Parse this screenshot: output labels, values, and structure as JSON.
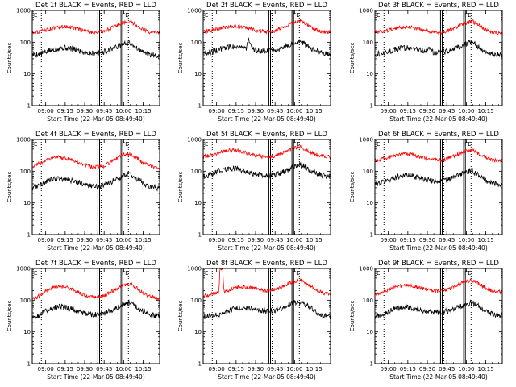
{
  "figure": {
    "x_axis_label": "Start Time (22-Mar-05 08:49:40)",
    "y_axis_label": "Counts/sec",
    "x_tick_labels": [
      "09:00",
      "09:15",
      "09:30",
      "09:45",
      "10:00",
      "10:15"
    ],
    "y_tick_labels": [
      "1",
      "10",
      "100",
      "1000"
    ],
    "flag_labels": [
      "E",
      "F",
      "F",
      "E"
    ],
    "colors": {
      "events": "#000000",
      "lld": "#ff0000",
      "background": "#ffffff",
      "axes": "#000000"
    }
  },
  "chart_data": [
    {
      "type": "line",
      "title": "Det 1f BLACK = Events, RED = LLD",
      "x_unit": "minutes after 08:49:40",
      "xlim": [
        0,
        98
      ],
      "ylim": [
        1,
        1000
      ],
      "y_scale": "log",
      "dotted_lines_x": [
        7,
        53,
        74
      ],
      "solid_line_pairs_x": [
        [
          50.5,
          51.8
        ],
        [
          68.3,
          69.6
        ]
      ],
      "series": [
        {
          "name": "Events",
          "color": "#000000",
          "x": [
            0,
            5,
            10,
            15,
            20,
            25,
            30,
            35,
            40,
            45,
            50,
            55,
            60,
            65,
            70,
            75,
            80,
            85,
            90,
            98
          ],
          "y": [
            40,
            42,
            48,
            57,
            64,
            67,
            63,
            55,
            48,
            45,
            46,
            50,
            60,
            72,
            88,
            95,
            68,
            48,
            40,
            38
          ]
        },
        {
          "name": "LLD",
          "color": "#ff0000",
          "x": [
            0,
            5,
            10,
            15,
            20,
            25,
            30,
            35,
            40,
            45,
            50,
            55,
            60,
            65,
            70,
            75,
            80,
            85,
            90,
            98
          ],
          "y": [
            205,
            215,
            240,
            270,
            300,
            310,
            290,
            260,
            230,
            210,
            205,
            220,
            270,
            340,
            420,
            460,
            350,
            260,
            210,
            195
          ]
        }
      ]
    },
    {
      "type": "line",
      "title": "Det 2f BLACK = Events, RED = LLD",
      "x_unit": "minutes after 08:49:40",
      "xlim": [
        0,
        98
      ],
      "ylim": [
        1,
        1000
      ],
      "y_scale": "log",
      "dotted_lines_x": [
        7,
        53,
        74
      ],
      "solid_line_pairs_x": [
        [
          50.5,
          51.8
        ],
        [
          68.3,
          69.6
        ]
      ],
      "series": [
        {
          "name": "Events",
          "color": "#000000",
          "x": [
            0,
            5,
            10,
            15,
            20,
            25,
            30,
            33,
            35,
            37,
            40,
            45,
            50,
            55,
            60,
            65,
            70,
            75,
            80,
            85,
            90,
            98
          ],
          "y": [
            45,
            48,
            55,
            65,
            72,
            75,
            70,
            62,
            120,
            64,
            56,
            52,
            54,
            58,
            66,
            80,
            98,
            105,
            80,
            58,
            46,
            42
          ]
        },
        {
          "name": "LLD",
          "color": "#ff0000",
          "x": [
            0,
            5,
            10,
            15,
            20,
            25,
            30,
            35,
            40,
            45,
            50,
            55,
            60,
            65,
            70,
            75,
            80,
            85,
            90,
            98
          ],
          "y": [
            215,
            230,
            255,
            285,
            310,
            320,
            300,
            270,
            240,
            220,
            215,
            230,
            280,
            350,
            430,
            460,
            360,
            270,
            220,
            205
          ]
        }
      ]
    },
    {
      "type": "line",
      "title": "Det 3f BLACK = Events, RED = LLD",
      "x_unit": "minutes after 08:49:40",
      "xlim": [
        0,
        98
      ],
      "ylim": [
        1,
        1000
      ],
      "y_scale": "log",
      "dotted_lines_x": [
        7,
        53,
        74
      ],
      "solid_line_pairs_x": [
        [
          50.5,
          51.8
        ],
        [
          68.3,
          69.6
        ]
      ],
      "series": [
        {
          "name": "Events",
          "color": "#000000",
          "x": [
            0,
            5,
            10,
            15,
            20,
            25,
            30,
            35,
            40,
            42,
            44,
            47,
            50,
            55,
            60,
            65,
            70,
            75,
            80,
            85,
            90,
            98
          ],
          "y": [
            42,
            45,
            50,
            58,
            64,
            68,
            64,
            56,
            50,
            72,
            49,
            47,
            48,
            52,
            62,
            74,
            90,
            96,
            70,
            50,
            42,
            40
          ]
        },
        {
          "name": "LLD",
          "color": "#ff0000",
          "x": [
            0,
            5,
            10,
            15,
            20,
            25,
            30,
            35,
            40,
            45,
            50,
            55,
            60,
            65,
            70,
            75,
            80,
            85,
            90,
            98
          ],
          "y": [
            200,
            210,
            235,
            265,
            295,
            305,
            285,
            255,
            225,
            205,
            200,
            215,
            265,
            335,
            410,
            450,
            340,
            255,
            205,
            190
          ]
        }
      ]
    },
    {
      "type": "line",
      "title": "Det 4f BLACK = Events, RED = LLD",
      "x_unit": "minutes after 08:49:40",
      "xlim": [
        0,
        98
      ],
      "ylim": [
        1,
        1000
      ],
      "y_scale": "log",
      "dotted_lines_x": [
        7,
        53,
        74
      ],
      "solid_line_pairs_x": [
        [
          50.5,
          51.8
        ],
        [
          68.3,
          69.6
        ]
      ],
      "series": [
        {
          "name": "Events",
          "color": "#000000",
          "x": [
            0,
            5,
            10,
            15,
            20,
            25,
            30,
            35,
            40,
            45,
            50,
            55,
            60,
            65,
            70,
            75,
            80,
            85,
            90,
            98
          ],
          "y": [
            30,
            36,
            45,
            55,
            60,
            58,
            52,
            45,
            38,
            34,
            33,
            36,
            45,
            58,
            72,
            80,
            60,
            42,
            33,
            28
          ]
        },
        {
          "name": "LLD",
          "color": "#ff0000",
          "x": [
            0,
            5,
            10,
            15,
            20,
            25,
            30,
            35,
            40,
            45,
            50,
            55,
            60,
            65,
            70,
            75,
            80,
            85,
            90,
            98
          ],
          "y": [
            140,
            170,
            210,
            250,
            270,
            260,
            230,
            190,
            160,
            140,
            135,
            145,
            190,
            260,
            330,
            360,
            270,
            190,
            150,
            125
          ]
        }
      ]
    },
    {
      "type": "line",
      "title": "Det 5f BLACK = Events, RED = LLD",
      "x_unit": "minutes after 08:49:40",
      "xlim": [
        0,
        98
      ],
      "ylim": [
        1,
        1000
      ],
      "y_scale": "log",
      "dotted_lines_x": [
        7,
        53,
        74
      ],
      "solid_line_pairs_x": [
        [
          50.5,
          51.8
        ],
        [
          68.3,
          69.6
        ]
      ],
      "series": [
        {
          "name": "Events",
          "color": "#000000",
          "x": [
            0,
            5,
            10,
            15,
            20,
            25,
            30,
            35,
            40,
            45,
            50,
            55,
            60,
            65,
            70,
            75,
            80,
            85,
            90,
            98
          ],
          "y": [
            65,
            75,
            95,
            115,
            125,
            120,
            108,
            95,
            82,
            75,
            72,
            76,
            90,
            110,
            140,
            160,
            125,
            95,
            78,
            70
          ]
        },
        {
          "name": "LLD",
          "color": "#ff0000",
          "x": [
            0,
            5,
            10,
            15,
            20,
            25,
            30,
            35,
            40,
            45,
            50,
            55,
            60,
            65,
            70,
            75,
            80,
            85,
            90,
            98
          ],
          "y": [
            290,
            310,
            360,
            420,
            460,
            450,
            410,
            360,
            320,
            290,
            280,
            295,
            350,
            440,
            540,
            590,
            450,
            360,
            310,
            280
          ]
        }
      ]
    },
    {
      "type": "line",
      "title": "Det 6f BLACK = Events, RED = LLD",
      "x_unit": "minutes after 08:49:40",
      "xlim": [
        0,
        98
      ],
      "ylim": [
        1,
        1000
      ],
      "y_scale": "log",
      "dotted_lines_x": [
        7,
        53,
        74
      ],
      "solid_line_pairs_x": [
        [
          50.5,
          51.8
        ],
        [
          68.3,
          69.6
        ]
      ],
      "series": [
        {
          "name": "Events",
          "color": "#000000",
          "x": [
            0,
            5,
            10,
            15,
            20,
            25,
            30,
            35,
            40,
            45,
            50,
            55,
            60,
            65,
            70,
            75,
            80,
            85,
            90,
            98
          ],
          "y": [
            40,
            44,
            52,
            64,
            72,
            75,
            70,
            62,
            55,
            50,
            48,
            52,
            62,
            78,
            95,
            102,
            75,
            52,
            42,
            38
          ]
        },
        {
          "name": "LLD",
          "color": "#ff0000",
          "x": [
            0,
            5,
            10,
            15,
            20,
            25,
            30,
            35,
            40,
            45,
            50,
            55,
            60,
            65,
            70,
            75,
            80,
            85,
            90,
            98
          ],
          "y": [
            220,
            235,
            265,
            305,
            340,
            350,
            320,
            285,
            250,
            230,
            225,
            240,
            290,
            360,
            430,
            460,
            350,
            270,
            225,
            210
          ]
        }
      ]
    },
    {
      "type": "line",
      "title": "Det 7f BLACK = Events, RED = LLD",
      "x_unit": "minutes after 08:49:40",
      "xlim": [
        0,
        98
      ],
      "ylim": [
        1,
        1000
      ],
      "y_scale": "log",
      "dotted_lines_x": [
        7,
        53,
        74
      ],
      "solid_line_pairs_x": [
        [
          50.5,
          51.8
        ],
        [
          68.3,
          69.6
        ]
      ],
      "series": [
        {
          "name": "Events",
          "color": "#000000",
          "x": [
            0,
            5,
            10,
            15,
            20,
            25,
            30,
            35,
            40,
            45,
            50,
            55,
            60,
            65,
            70,
            75,
            80,
            85,
            90,
            98
          ],
          "y": [
            28,
            34,
            45,
            56,
            62,
            60,
            54,
            46,
            40,
            36,
            35,
            38,
            46,
            60,
            76,
            86,
            64,
            45,
            35,
            30
          ]
        },
        {
          "name": "LLD",
          "color": "#ff0000",
          "x": [
            0,
            5,
            10,
            15,
            20,
            25,
            30,
            35,
            40,
            45,
            50,
            55,
            60,
            65,
            70,
            75,
            80,
            85,
            90,
            98
          ],
          "y": [
            105,
            135,
            190,
            250,
            280,
            265,
            225,
            180,
            150,
            130,
            125,
            138,
            175,
            235,
            300,
            330,
            250,
            175,
            130,
            110
          ]
        }
      ]
    },
    {
      "type": "line",
      "title": "Det 8f BLACK = Events, RED = LLD",
      "x_unit": "minutes after 08:49:40",
      "xlim": [
        0,
        98
      ],
      "ylim": [
        1,
        1000
      ],
      "y_scale": "log",
      "dotted_lines_x": [
        7,
        53,
        74
      ],
      "solid_line_pairs_x": [
        [
          50.5,
          51.8
        ],
        [
          68.3,
          69.6
        ]
      ],
      "series": [
        {
          "name": "Events",
          "color": "#000000",
          "x": [
            0,
            5,
            10,
            13,
            16,
            20,
            25,
            30,
            35,
            40,
            45,
            50,
            55,
            60,
            65,
            70,
            75,
            80,
            85,
            90,
            98
          ],
          "y": [
            30,
            32,
            34,
            35,
            40,
            48,
            55,
            58,
            55,
            50,
            46,
            45,
            48,
            56,
            68,
            84,
            90,
            68,
            48,
            36,
            30
          ]
        },
        {
          "name": "LLD",
          "color": "#ff0000",
          "x": [
            0,
            5,
            8,
            10,
            12,
            13,
            15,
            16,
            20,
            25,
            30,
            35,
            40,
            45,
            50,
            55,
            60,
            65,
            70,
            75,
            80,
            85,
            90,
            98
          ],
          "y": [
            135,
            150,
            160,
            165,
            175,
            1000,
            1000,
            180,
            210,
            250,
            270,
            255,
            225,
            205,
            200,
            215,
            260,
            330,
            400,
            430,
            330,
            240,
            180,
            150
          ]
        }
      ]
    },
    {
      "type": "line",
      "title": "Det 9f BLACK = Events, RED = LLD",
      "x_unit": "minutes after 08:49:40",
      "xlim": [
        0,
        98
      ],
      "ylim": [
        1,
        1000
      ],
      "y_scale": "log",
      "dotted_lines_x": [
        7,
        53,
        74
      ],
      "solid_line_pairs_x": [
        [
          50.5,
          51.8
        ],
        [
          68.3,
          69.6
        ]
      ],
      "series": [
        {
          "name": "Events",
          "color": "#000000",
          "x": [
            0,
            5,
            10,
            15,
            20,
            25,
            30,
            35,
            40,
            45,
            50,
            55,
            60,
            65,
            70,
            75,
            80,
            85,
            90,
            98
          ],
          "y": [
            30,
            34,
            42,
            52,
            58,
            60,
            55,
            48,
            44,
            42,
            42,
            45,
            52,
            62,
            76,
            84,
            64,
            46,
            36,
            32
          ]
        },
        {
          "name": "LLD",
          "color": "#ff0000",
          "x": [
            0,
            5,
            10,
            15,
            20,
            25,
            30,
            35,
            40,
            45,
            50,
            55,
            60,
            65,
            70,
            75,
            80,
            85,
            90,
            98
          ],
          "y": [
            160,
            175,
            210,
            250,
            280,
            290,
            270,
            240,
            215,
            200,
            195,
            210,
            255,
            320,
            390,
            420,
            330,
            250,
            200,
            180
          ]
        }
      ]
    }
  ]
}
